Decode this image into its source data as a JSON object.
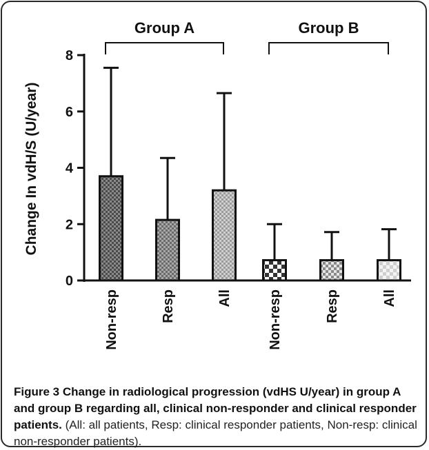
{
  "chart_data": {
    "type": "bar",
    "ylabel": "Change In vdH/S (U/year)",
    "ylim": [
      0,
      8
    ],
    "yticks": [
      "0",
      "2",
      "4",
      "6",
      "8"
    ],
    "groups": [
      {
        "name": "Group A",
        "categories": [
          "Non-resp",
          "Resp",
          "All"
        ],
        "values": [
          3.7,
          2.15,
          3.2
        ],
        "errors": [
          3.85,
          2.2,
          3.45
        ],
        "patterns": [
          "dark-check",
          "medium-check",
          "light-check"
        ]
      },
      {
        "name": "Group B",
        "categories": [
          "Non-resp",
          "Resp",
          "All"
        ],
        "values": [
          0.72,
          0.72,
          0.72
        ],
        "errors": [
          1.28,
          1.0,
          1.1
        ],
        "patterns": [
          "big-check",
          "gray-check",
          "faint-check"
        ]
      }
    ]
  },
  "caption": {
    "label": "Figure 3",
    "title": "Change in radiological progression (vdHS U/year) in group A and group B regarding all, clinical non-responder and clinical responder patients.",
    "note": "(All: all patients, Resp: clinical responder patients, Non-resp: clinical non-responder patients)."
  },
  "colors": {
    "stroke": "#111111",
    "axis": "#111111"
  }
}
